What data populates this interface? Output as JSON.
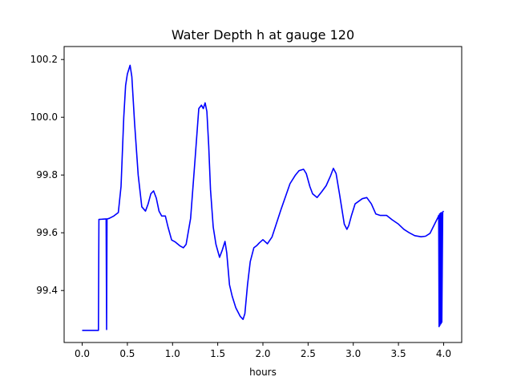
{
  "chart_data": {
    "type": "line",
    "title": "Water Depth h at gauge 120",
    "xlabel": "hours",
    "ylabel": "",
    "xlim": [
      -0.2,
      4.2
    ],
    "ylim": [
      99.22,
      100.245
    ],
    "xticks": [
      0.0,
      0.5,
      1.0,
      1.5,
      2.0,
      2.5,
      3.0,
      3.5,
      4.0
    ],
    "xtick_labels": [
      "0.0",
      "0.5",
      "1.0",
      "1.5",
      "2.0",
      "2.5",
      "3.0",
      "3.5",
      "4.0"
    ],
    "yticks": [
      99.4,
      99.6,
      99.8,
      100.0,
      100.2
    ],
    "ytick_labels": [
      "99.4",
      "99.6",
      "99.8",
      "100.0",
      "100.2"
    ],
    "grid": false,
    "legend": "none",
    "series": [
      {
        "color": "#0000ff",
        "x": [
          0.0,
          0.18,
          0.185,
          0.265,
          0.27,
          0.275,
          0.28,
          0.3,
          0.35,
          0.4,
          0.43,
          0.46,
          0.48,
          0.5,
          0.53,
          0.55,
          0.58,
          0.62,
          0.66,
          0.7,
          0.73,
          0.76,
          0.79,
          0.82,
          0.85,
          0.88,
          0.92,
          0.95,
          0.99,
          1.03,
          1.08,
          1.12,
          1.15,
          1.2,
          1.25,
          1.29,
          1.32,
          1.34,
          1.36,
          1.38,
          1.4,
          1.42,
          1.45,
          1.48,
          1.52,
          1.55,
          1.58,
          1.6,
          1.63,
          1.66,
          1.7,
          1.75,
          1.78,
          1.8,
          1.83,
          1.86,
          1.9,
          1.93,
          1.96,
          2.0,
          2.05,
          2.1,
          2.2,
          2.3,
          2.36,
          2.4,
          2.45,
          2.48,
          2.52,
          2.55,
          2.6,
          2.65,
          2.7,
          2.75,
          2.78,
          2.81,
          2.85,
          2.9,
          2.93,
          2.95,
          2.98,
          3.02,
          3.1,
          3.15,
          3.2,
          3.25,
          3.3,
          3.37,
          3.43,
          3.5,
          3.56,
          3.62,
          3.68,
          3.75,
          3.8,
          3.85,
          3.9,
          3.94,
          3.945,
          3.95,
          3.955,
          3.96,
          3.965,
          3.97,
          3.975,
          3.98,
          3.99,
          4.0
        ],
        "y": [
          99.262,
          99.262,
          99.646,
          99.648,
          99.265,
          99.648,
          99.648,
          99.65,
          99.658,
          99.67,
          99.76,
          100.0,
          100.11,
          100.15,
          100.18,
          100.14,
          99.98,
          99.8,
          99.69,
          99.675,
          99.7,
          99.735,
          99.745,
          99.72,
          99.675,
          99.658,
          99.658,
          99.62,
          99.575,
          99.568,
          99.555,
          99.548,
          99.56,
          99.65,
          99.86,
          100.03,
          100.042,
          100.03,
          100.05,
          100.02,
          99.9,
          99.75,
          99.62,
          99.56,
          99.515,
          99.54,
          99.57,
          99.53,
          99.42,
          99.38,
          99.34,
          99.31,
          99.3,
          99.32,
          99.42,
          99.5,
          99.548,
          99.555,
          99.565,
          99.576,
          99.562,
          99.585,
          99.68,
          99.77,
          99.8,
          99.815,
          99.82,
          99.805,
          99.76,
          99.735,
          99.722,
          99.742,
          99.763,
          99.798,
          99.823,
          99.805,
          99.73,
          99.63,
          99.612,
          99.625,
          99.66,
          99.7,
          99.718,
          99.722,
          99.7,
          99.665,
          99.66,
          99.66,
          99.645,
          99.63,
          99.612,
          99.6,
          99.59,
          99.586,
          99.588,
          99.598,
          99.63,
          99.655,
          99.66,
          99.275,
          99.665,
          99.28,
          99.668,
          99.285,
          99.67,
          99.29,
          99.672,
          99.675
        ]
      }
    ]
  }
}
